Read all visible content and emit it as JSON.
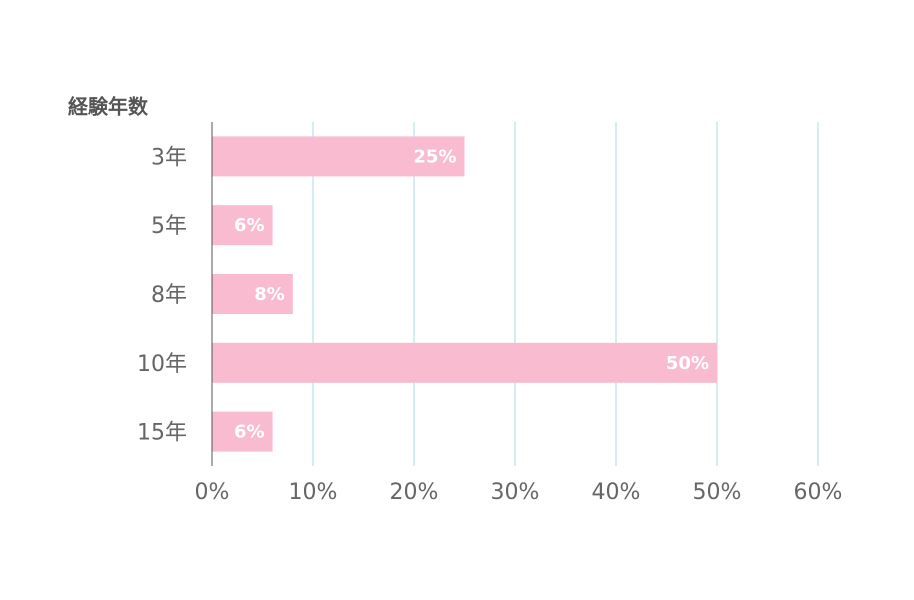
{
  "chart_data": {
    "type": "barh",
    "y_axis_title": "経験年数",
    "categories": [
      "3年",
      "5年",
      "8年",
      "10年",
      "15年"
    ],
    "values": [
      25,
      6,
      8,
      50,
      6
    ],
    "value_labels": [
      "25%",
      "6%",
      "8%",
      "50%",
      "6%"
    ],
    "color": "#f8bbd0",
    "xlim": [
      0,
      60
    ],
    "xticks": [
      {
        "value": 0,
        "label": "0%"
      },
      {
        "value": 10,
        "label": "10%"
      },
      {
        "value": 20,
        "label": "20%"
      },
      {
        "value": 30,
        "label": "30%"
      },
      {
        "value": 40,
        "label": "40%"
      },
      {
        "value": 50,
        "label": "50%"
      },
      {
        "value": 60,
        "label": "60%"
      }
    ],
    "grid": true,
    "grid_color": "#a9dbe6"
  }
}
